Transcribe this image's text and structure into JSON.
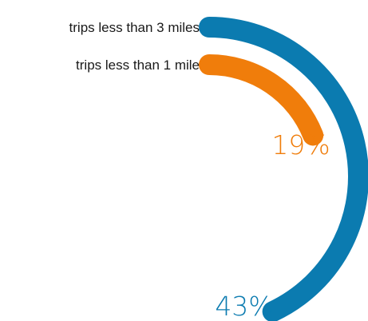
{
  "chart_data": {
    "type": "radial-bar",
    "series": [
      {
        "name": "trips less than 3 miles",
        "value": 43,
        "value_label": "43%",
        "color": "#0b7bb0"
      },
      {
        "name": "trips less than 1 mile",
        "value": 19,
        "value_label": "19%",
        "color": "#f07d0b"
      }
    ]
  }
}
